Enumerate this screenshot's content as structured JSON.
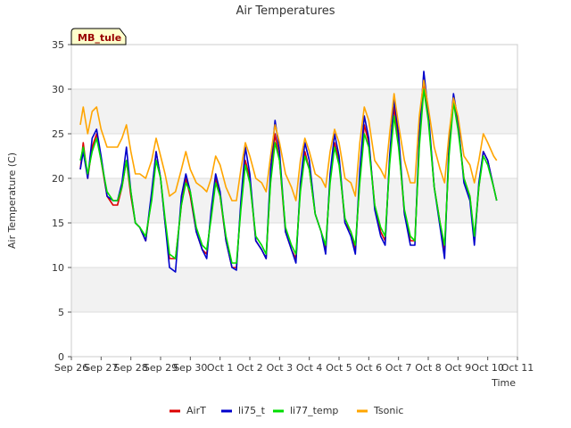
{
  "chart_data": {
    "type": "line",
    "title": "Air Temperatures",
    "site_label": "MB_tule",
    "xlabel": "Time",
    "ylabel": "Air Temperature (C)",
    "ylim": [
      0,
      35
    ],
    "yticks": [
      0,
      5,
      10,
      15,
      20,
      25,
      30,
      35
    ],
    "xlim": [
      0,
      15
    ],
    "xticks": [
      {
        "pos": 0,
        "label": "Sep 26"
      },
      {
        "pos": 1,
        "label": "Sep 27"
      },
      {
        "pos": 2,
        "label": "Sep 28"
      },
      {
        "pos": 3,
        "label": "Sep 29"
      },
      {
        "pos": 4,
        "label": "Sep 30"
      },
      {
        "pos": 5,
        "label": "Oct 1"
      },
      {
        "pos": 6,
        "label": "Oct 2"
      },
      {
        "pos": 7,
        "label": "Oct 3"
      },
      {
        "pos": 8,
        "label": "Oct 4"
      },
      {
        "pos": 9,
        "label": "Oct 5"
      },
      {
        "pos": 10,
        "label": "Oct 6"
      },
      {
        "pos": 11,
        "label": "Oct 7"
      },
      {
        "pos": 12,
        "label": "Oct 8"
      },
      {
        "pos": 13,
        "label": "Oct 9"
      },
      {
        "pos": 14,
        "label": "Oct 10"
      },
      {
        "pos": 15,
        "label": "Oct 11"
      }
    ],
    "grid": true,
    "legend_position": "bottom",
    "series": [
      {
        "name": "AirT",
        "color": "#dd0000",
        "x": [
          0.3,
          0.4,
          0.55,
          0.7,
          0.85,
          1.0,
          1.2,
          1.4,
          1.55,
          1.7,
          1.85,
          2.0,
          2.15,
          2.3,
          2.5,
          2.7,
          2.85,
          3.0,
          3.15,
          3.3,
          3.5,
          3.7,
          3.85,
          4.0,
          4.2,
          4.4,
          4.55,
          4.7,
          4.85,
          5.0,
          5.2,
          5.4,
          5.55,
          5.7,
          5.85,
          6.0,
          6.2,
          6.4,
          6.55,
          6.7,
          6.85,
          7.0,
          7.2,
          7.4,
          7.55,
          7.7,
          7.85,
          8.0,
          8.2,
          8.4,
          8.55,
          8.7,
          8.85,
          9.0,
          9.2,
          9.4,
          9.55,
          9.7,
          9.85,
          10.0,
          10.2,
          10.4,
          10.55,
          10.7,
          10.85,
          11.0,
          11.2,
          11.4,
          11.55,
          11.7,
          11.85,
          12.0,
          12.2,
          12.4,
          12.55,
          12.7,
          12.85,
          13.0,
          13.2,
          13.4,
          13.55,
          13.7,
          13.85,
          14.0,
          14.2,
          14.3
        ],
        "values": [
          21.0,
          24.0,
          20.0,
          23.5,
          25.0,
          22.0,
          18.0,
          17.0,
          17.0,
          19.0,
          22.0,
          18.0,
          15.0,
          14.5,
          13.0,
          18.0,
          23.0,
          20.0,
          15.0,
          11.0,
          11.0,
          17.0,
          20.0,
          18.0,
          14.0,
          12.0,
          11.5,
          16.0,
          20.0,
          18.0,
          13.0,
          10.0,
          10.0,
          17.0,
          22.0,
          20.0,
          13.0,
          12.0,
          11.0,
          20.0,
          25.0,
          22.0,
          14.0,
          12.0,
          11.0,
          19.0,
          23.0,
          21.0,
          16.0,
          14.0,
          12.0,
          20.0,
          24.0,
          22.0,
          15.0,
          14.0,
          12.0,
          20.0,
          26.0,
          24.0,
          17.0,
          14.0,
          13.0,
          22.0,
          28.0,
          24.0,
          16.0,
          13.0,
          13.0,
          24.0,
          31.0,
          27.0,
          19.0,
          15.0,
          12.0,
          23.0,
          29.0,
          26.0,
          20.0,
          18.0,
          13.0,
          19.0,
          23.0,
          22.0,
          19.0,
          17.5
        ]
      },
      {
        "name": "li75_t",
        "color": "#0000cc",
        "x": [
          0.3,
          0.4,
          0.55,
          0.7,
          0.85,
          1.0,
          1.2,
          1.4,
          1.55,
          1.7,
          1.85,
          2.0,
          2.15,
          2.3,
          2.5,
          2.7,
          2.85,
          3.0,
          3.15,
          3.3,
          3.5,
          3.7,
          3.85,
          4.0,
          4.2,
          4.4,
          4.55,
          4.7,
          4.85,
          5.0,
          5.2,
          5.4,
          5.55,
          5.7,
          5.85,
          6.0,
          6.2,
          6.4,
          6.55,
          6.7,
          6.85,
          7.0,
          7.2,
          7.4,
          7.55,
          7.7,
          7.85,
          8.0,
          8.2,
          8.4,
          8.55,
          8.7,
          8.85,
          9.0,
          9.2,
          9.4,
          9.55,
          9.7,
          9.85,
          10.0,
          10.2,
          10.4,
          10.55,
          10.7,
          10.85,
          11.0,
          11.2,
          11.4,
          11.55,
          11.7,
          11.85,
          12.0,
          12.2,
          12.4,
          12.55,
          12.7,
          12.85,
          13.0,
          13.2,
          13.4,
          13.55,
          13.7,
          13.85,
          14.0,
          14.2,
          14.3
        ],
        "values": [
          21.0,
          23.0,
          20.0,
          24.5,
          25.5,
          22.5,
          18.0,
          17.5,
          17.5,
          19.5,
          23.5,
          18.5,
          15.0,
          14.5,
          13.0,
          18.5,
          23.0,
          20.0,
          15.0,
          10.0,
          9.5,
          18.0,
          20.5,
          18.5,
          14.0,
          12.0,
          11.0,
          16.5,
          20.5,
          18.5,
          13.0,
          10.0,
          9.7,
          17.5,
          23.5,
          20.5,
          13.0,
          12.0,
          11.0,
          21.0,
          26.5,
          23.0,
          14.0,
          12.0,
          10.5,
          19.5,
          24.0,
          22.0,
          16.0,
          14.0,
          11.5,
          20.5,
          25.0,
          22.5,
          15.0,
          13.5,
          11.5,
          21.0,
          27.0,
          24.5,
          16.5,
          13.5,
          12.5,
          22.5,
          29.0,
          25.0,
          16.0,
          12.5,
          12.5,
          25.0,
          32.0,
          27.5,
          19.0,
          14.5,
          11.0,
          24.0,
          29.5,
          26.5,
          19.5,
          17.5,
          12.5,
          19.5,
          23.0,
          22.0,
          19.0,
          17.5
        ]
      },
      {
        "name": "li77_temp",
        "color": "#00dd00",
        "x": [
          0.3,
          0.4,
          0.55,
          0.7,
          0.85,
          1.0,
          1.2,
          1.4,
          1.55,
          1.7,
          1.85,
          2.0,
          2.15,
          2.3,
          2.5,
          2.7,
          2.85,
          3.0,
          3.15,
          3.3,
          3.5,
          3.7,
          3.85,
          4.0,
          4.2,
          4.4,
          4.55,
          4.7,
          4.85,
          5.0,
          5.2,
          5.4,
          5.55,
          5.7,
          5.85,
          6.0,
          6.2,
          6.4,
          6.55,
          6.7,
          6.85,
          7.0,
          7.2,
          7.4,
          7.55,
          7.7,
          7.85,
          8.0,
          8.2,
          8.4,
          8.55,
          8.7,
          8.85,
          9.0,
          9.2,
          9.4,
          9.55,
          9.7,
          9.85,
          10.0,
          10.2,
          10.4,
          10.55,
          10.7,
          10.85,
          11.0,
          11.2,
          11.4,
          11.55,
          11.7,
          11.85,
          12.0,
          12.2,
          12.4,
          12.55,
          12.7,
          12.85,
          13.0,
          13.2,
          13.4,
          13.55,
          13.7,
          13.85,
          14.0,
          14.2,
          14.3
        ],
        "values": [
          22.0,
          23.5,
          20.5,
          23.0,
          24.5,
          22.0,
          18.5,
          17.5,
          17.5,
          19.0,
          22.0,
          18.5,
          15.0,
          14.5,
          13.5,
          17.5,
          22.0,
          20.0,
          15.5,
          11.5,
          11.0,
          17.0,
          19.5,
          18.5,
          14.5,
          12.5,
          12.0,
          15.5,
          19.5,
          18.0,
          13.5,
          10.5,
          10.5,
          16.5,
          21.5,
          19.5,
          13.5,
          12.5,
          11.5,
          19.5,
          24.0,
          22.0,
          14.5,
          12.5,
          11.5,
          18.5,
          22.5,
          21.0,
          16.0,
          14.0,
          12.5,
          19.5,
          23.5,
          21.5,
          15.5,
          14.0,
          12.5,
          19.5,
          25.0,
          23.5,
          17.0,
          14.5,
          13.5,
          21.5,
          27.0,
          23.5,
          16.5,
          13.5,
          13.0,
          23.5,
          30.0,
          26.5,
          19.0,
          15.0,
          12.5,
          22.5,
          28.5,
          25.5,
          20.0,
          18.0,
          13.5,
          19.0,
          22.5,
          21.5,
          19.0,
          17.5
        ]
      },
      {
        "name": "Tsonic",
        "color": "#ffa500",
        "x": [
          0.3,
          0.4,
          0.55,
          0.7,
          0.85,
          1.0,
          1.2,
          1.4,
          1.55,
          1.7,
          1.85,
          2.0,
          2.15,
          2.3,
          2.5,
          2.7,
          2.85,
          3.0,
          3.15,
          3.3,
          3.5,
          3.7,
          3.85,
          4.0,
          4.2,
          4.4,
          4.55,
          4.7,
          4.85,
          5.0,
          5.2,
          5.4,
          5.55,
          5.7,
          5.85,
          6.0,
          6.2,
          6.4,
          6.55,
          6.7,
          6.85,
          7.0,
          7.2,
          7.4,
          7.55,
          7.7,
          7.85,
          8.0,
          8.2,
          8.4,
          8.55,
          8.7,
          8.85,
          9.0,
          9.2,
          9.4,
          9.55,
          9.7,
          9.85,
          10.0,
          10.2,
          10.4,
          10.55,
          10.7,
          10.85,
          11.0,
          11.2,
          11.4,
          11.55,
          11.7,
          11.85,
          12.0,
          12.2,
          12.4,
          12.55,
          12.7,
          12.85,
          13.0,
          13.2,
          13.4,
          13.55,
          13.7,
          13.85,
          14.0,
          14.2,
          14.3
        ],
        "values": [
          26.0,
          28.0,
          25.0,
          27.5,
          28.0,
          25.5,
          23.5,
          23.5,
          23.5,
          24.5,
          26.0,
          23.0,
          20.5,
          20.5,
          20.0,
          22.0,
          24.5,
          22.5,
          20.5,
          18.0,
          18.5,
          21.0,
          23.0,
          21.0,
          19.5,
          19.0,
          18.5,
          20.0,
          22.5,
          21.5,
          19.0,
          17.5,
          17.5,
          21.0,
          24.0,
          22.5,
          20.0,
          19.5,
          18.5,
          22.5,
          26.0,
          24.0,
          20.5,
          19.0,
          17.5,
          22.0,
          24.5,
          23.0,
          20.5,
          20.0,
          19.0,
          23.0,
          25.5,
          24.0,
          20.0,
          19.5,
          18.0,
          24.0,
          28.0,
          26.5,
          22.0,
          21.0,
          20.0,
          25.0,
          29.5,
          26.0,
          22.0,
          19.5,
          19.5,
          27.0,
          31.0,
          28.0,
          23.5,
          21.0,
          19.5,
          25.0,
          29.0,
          27.0,
          22.5,
          21.5,
          19.5,
          22.0,
          25.0,
          24.0,
          22.5,
          22.0
        ]
      }
    ]
  }
}
